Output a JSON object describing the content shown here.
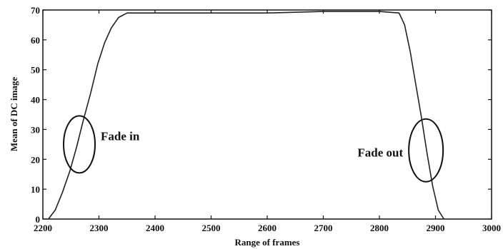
{
  "chart_data": {
    "type": "line",
    "title": "",
    "xlabel": "Range of frames",
    "ylabel": "Mean of DC image",
    "xlim": [
      2200,
      3000
    ],
    "ylim": [
      0,
      70
    ],
    "x_ticks": [
      2200,
      2300,
      2400,
      2500,
      2600,
      2700,
      2800,
      2900,
      3000
    ],
    "x_tick_labels": [
      "2200",
      "2300",
      "2400",
      "2500",
      "2600",
      "2700",
      "2800",
      "2900",
      "3000"
    ],
    "y_ticks": [
      0,
      10,
      20,
      30,
      40,
      50,
      60,
      70
    ],
    "y_tick_labels": [
      "0",
      "10",
      "20",
      "30",
      "40",
      "50",
      "60",
      "70"
    ],
    "grid": false,
    "series": [
      {
        "color": "#222222",
        "x": [
          2210,
          2222,
          2235,
          2248,
          2260,
          2272,
          2285,
          2298,
          2310,
          2322,
          2335,
          2350,
          2400,
          2500,
          2600,
          2700,
          2800,
          2835,
          2845,
          2855,
          2865,
          2875,
          2885,
          2895,
          2905,
          2915
        ],
        "y": [
          0,
          3,
          9,
          16,
          24,
          33,
          42,
          52,
          59,
          64,
          67.5,
          69,
          69,
          69,
          69,
          69.5,
          69.5,
          69,
          65,
          56,
          45,
          34,
          22,
          11,
          3,
          0
        ]
      }
    ],
    "annotations": [
      {
        "text": "Fade in",
        "circle_center": [
          2265,
          25
        ]
      },
      {
        "text": "Fade out",
        "circle_center": [
          2883,
          23
        ]
      }
    ]
  }
}
